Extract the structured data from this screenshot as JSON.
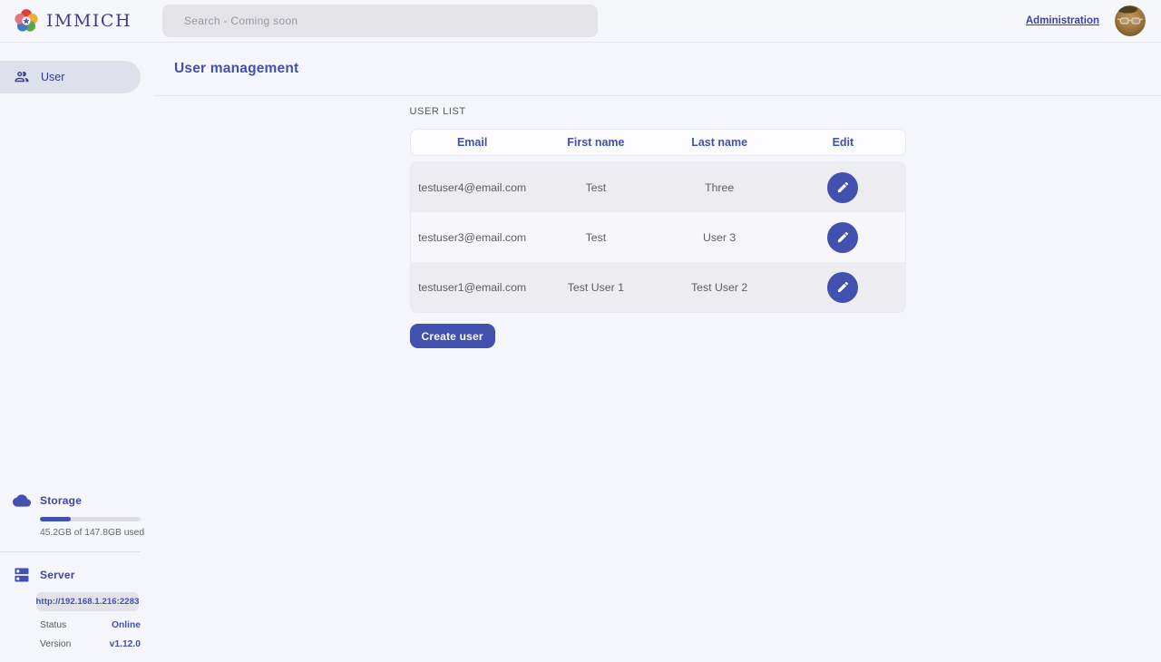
{
  "colors": {
    "primary": "#4250af",
    "page_background": "#f5f6fb",
    "active_nav_background": "#dee1ec",
    "row_alternate": "#ececf1",
    "online_status": "#4250af"
  },
  "topbar": {
    "logo_icon": "immich-flower-logo",
    "brand": "IMMICH",
    "search": {
      "placeholder": "Search - Coming soon"
    },
    "administration_link": "Administration",
    "avatar": "user-avatar-photo"
  },
  "sidebar": {
    "nav": [
      {
        "icon": "users-icon",
        "label": "User",
        "active": true
      }
    ],
    "storage": {
      "icon": "cloud-icon",
      "title": "Storage",
      "percent_used": 30.6,
      "usage_text": "45.2GB of 147.8GB used"
    },
    "server": {
      "icon": "server-icon",
      "title": "Server",
      "url": "http://192.168.1.216:2283",
      "info": [
        {
          "label": "Status",
          "value": "Online"
        },
        {
          "label": "Version",
          "value": "v1.12.0"
        }
      ]
    }
  },
  "main": {
    "title": "User management",
    "section_label": "USER LIST",
    "table": {
      "columns": [
        "Email",
        "First name",
        "Last name",
        "Edit"
      ],
      "edit_icon": "pencil-icon",
      "rows": [
        {
          "email": "testuser4@email.com",
          "first_name": "Test",
          "last_name": "Three"
        },
        {
          "email": "testuser3@email.com",
          "first_name": "Test",
          "last_name": "User 3"
        },
        {
          "email": "testuser1@email.com",
          "first_name": "Test User 1",
          "last_name": "Test User 2"
        }
      ]
    },
    "create_button_label": "Create user"
  }
}
